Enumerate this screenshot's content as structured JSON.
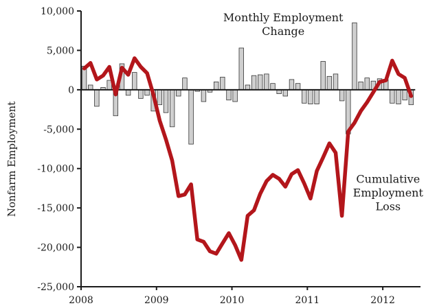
{
  "chart_data": {
    "type": "bar",
    "title": "",
    "xlabel": "",
    "ylabel": "Nonfarm Employment",
    "ylim": [
      -25000,
      10000
    ],
    "xlim": [
      2008,
      2012.5
    ],
    "grid": false,
    "y_ticks": [
      {
        "value": 10000,
        "label": "10,000"
      },
      {
        "value": 5000,
        "label": "5,000"
      },
      {
        "value": 0,
        "label": "0"
      },
      {
        "value": -5000,
        "label": "-5,000"
      },
      {
        "value": -10000,
        "label": "-10,000"
      },
      {
        "value": -15000,
        "label": "-15,000"
      },
      {
        "value": -20000,
        "label": "-20,000"
      },
      {
        "value": -25000,
        "label": "-25,000"
      }
    ],
    "x_ticks": [
      {
        "value": 2008,
        "label": "2008"
      },
      {
        "value": 2009,
        "label": "2009"
      },
      {
        "value": 2010,
        "label": "2010"
      },
      {
        "value": 2011,
        "label": "2011"
      },
      {
        "value": 2012,
        "label": "2012"
      }
    ],
    "series": [
      {
        "name": "Monthly Employment Change",
        "type": "bar",
        "color": "#cfcfcf",
        "x": [
          "2008-01",
          "2008-02",
          "2008-03",
          "2008-04",
          "2008-05",
          "2008-06",
          "2008-07",
          "2008-08",
          "2008-09",
          "2008-10",
          "2008-11",
          "2008-12",
          "2009-01",
          "2009-02",
          "2009-03",
          "2009-04",
          "2009-05",
          "2009-06",
          "2009-07",
          "2009-08",
          "2009-09",
          "2009-10",
          "2009-11",
          "2009-12",
          "2010-01",
          "2010-02",
          "2010-03",
          "2010-04",
          "2010-05",
          "2010-06",
          "2010-07",
          "2010-08",
          "2010-09",
          "2010-10",
          "2010-11",
          "2010-12",
          "2011-01",
          "2011-02",
          "2011-03",
          "2011-04",
          "2011-05",
          "2011-06",
          "2011-07",
          "2011-08",
          "2011-09",
          "2011-10",
          "2011-11",
          "2011-12",
          "2012-01",
          "2012-02",
          "2012-03",
          "2012-04",
          "2012-05"
        ],
        "values": [
          3000,
          600,
          -2100,
          300,
          1200,
          -3300,
          3300,
          -700,
          2200,
          -1100,
          -700,
          -2700,
          -1900,
          -2900,
          -4700,
          -800,
          1500,
          -6900,
          -200,
          -1500,
          -300,
          1000,
          1600,
          -1300,
          -1500,
          5300,
          600,
          1800,
          1900,
          2000,
          800,
          -500,
          -800,
          1300,
          800,
          -1700,
          -1800,
          -1800,
          3600,
          1700,
          2000,
          -1400,
          -5600,
          8500,
          1000,
          1500,
          1100,
          1400,
          1300,
          -1700,
          -1800,
          -1300,
          -1900
        ]
      },
      {
        "name": "Cumulative Employment Loss",
        "type": "line",
        "color": "#b3161b",
        "x": [
          "2008-01",
          "2008-02",
          "2008-03",
          "2008-04",
          "2008-05",
          "2008-06",
          "2008-07",
          "2008-08",
          "2008-09",
          "2008-10",
          "2008-11",
          "2008-12",
          "2009-01",
          "2009-02",
          "2009-03",
          "2009-04",
          "2009-05",
          "2009-06",
          "2009-07",
          "2009-08",
          "2009-09",
          "2009-10",
          "2009-11",
          "2009-12",
          "2010-01",
          "2010-02",
          "2010-03",
          "2010-04",
          "2010-05",
          "2010-06",
          "2010-07",
          "2010-08",
          "2010-09",
          "2010-10",
          "2010-11",
          "2010-12",
          "2011-01",
          "2011-02",
          "2011-03",
          "2011-04",
          "2011-05",
          "2011-06",
          "2011-07",
          "2011-08",
          "2011-09",
          "2011-10",
          "2011-11",
          "2011-12",
          "2012-01",
          "2012-02",
          "2012-03",
          "2012-04",
          "2012-05"
        ],
        "values": [
          2700,
          3400,
          1300,
          1800,
          2900,
          -600,
          2800,
          1900,
          4000,
          2900,
          2100,
          -600,
          -3900,
          -6300,
          -9000,
          -13500,
          -13300,
          -12000,
          -19000,
          -19300,
          -20500,
          -20800,
          -19500,
          -18200,
          -19700,
          -21600,
          -16000,
          -15300,
          -13200,
          -11600,
          -10800,
          -11300,
          -12300,
          -10700,
          -10200,
          -11900,
          -13800,
          -10300,
          -8600,
          -6800,
          -8000,
          -16000,
          -5300,
          -4200,
          -2700,
          -1600,
          -300,
          1000,
          1200,
          3700,
          2000,
          1500,
          -800
        ]
      }
    ],
    "annotations": [
      {
        "text_lines": [
          "Monthly Employment",
          "Change"
        ],
        "x": 2010.68,
        "y": 8700
      },
      {
        "text_lines": [
          "Cumulative",
          "Employment",
          "Loss"
        ],
        "x": 2012.07,
        "y": -11800
      }
    ]
  }
}
